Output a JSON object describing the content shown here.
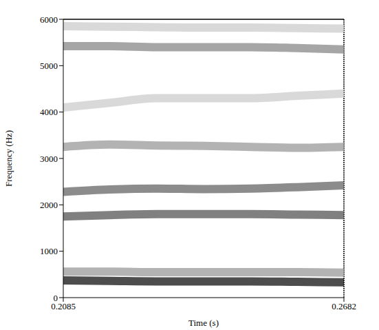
{
  "chart_data": {
    "type": "spectrogram",
    "x_label": "Time (s)",
    "y_label": "Frequency (Hz)",
    "x": [
      0.2085,
      0.2184,
      0.2284,
      0.2383,
      0.2483,
      0.2582,
      0.2682
    ],
    "xlim": [
      0.2085,
      0.2682
    ],
    "xticks": [
      0.2085,
      0.2682
    ],
    "ylim": [
      0,
      6000
    ],
    "yticks": [
      0,
      1000,
      2000,
      3000,
      4000,
      5000,
      6000
    ],
    "grid": false,
    "series": [
      {
        "color": "#111111",
        "values": [
          370,
          360,
          350,
          350,
          350,
          340,
          330
        ]
      },
      {
        "color": "#999999",
        "values": [
          560,
          560,
          550,
          550,
          550,
          550,
          540
        ]
      },
      {
        "color": "#555555",
        "values": [
          1750,
          1780,
          1800,
          1800,
          1800,
          1790,
          1780
        ]
      },
      {
        "color": "#666666",
        "values": [
          2280,
          2330,
          2350,
          2340,
          2350,
          2380,
          2420
        ]
      },
      {
        "color": "#999999",
        "values": [
          3250,
          3300,
          3280,
          3270,
          3250,
          3230,
          3250
        ]
      },
      {
        "color": "#cccccc",
        "values": [
          4100,
          4200,
          4300,
          4300,
          4300,
          4350,
          4400
        ]
      },
      {
        "color": "#888888",
        "values": [
          5420,
          5420,
          5400,
          5400,
          5400,
          5380,
          5350
        ]
      },
      {
        "color": "#cccccc",
        "values": [
          5850,
          5840,
          5830,
          5820,
          5820,
          5810,
          5800
        ]
      }
    ]
  }
}
